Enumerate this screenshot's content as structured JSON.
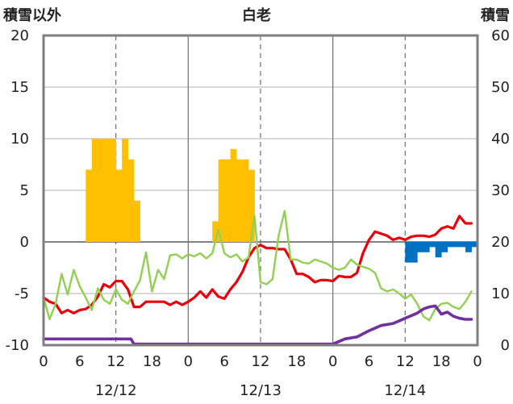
{
  "chart_data": {
    "type": "line",
    "title": "白老",
    "ylabel_left": "積雪以外",
    "ylabel_right": "積雪",
    "ylim_left": [
      -10,
      20
    ],
    "ylim_right": [
      0,
      60
    ],
    "yticks_left": [
      "20",
      "15",
      "10",
      "5",
      "0",
      "-5",
      "-10"
    ],
    "yticks_right": [
      "60",
      "50",
      "40",
      "30",
      "20",
      "10",
      "0"
    ],
    "xlim_hours": [
      0,
      72
    ],
    "xtick_labels": [
      "0",
      "6",
      "12",
      "18",
      "0",
      "6",
      "12",
      "18",
      "0",
      "6",
      "12",
      "18",
      "0"
    ],
    "date_labels": [
      "12/12",
      "12/13",
      "12/14"
    ],
    "grid": true,
    "colors": {
      "temperature": "#e8000b",
      "temperature2": "#92d050",
      "precipitation": "#ffc000",
      "snowfall_deficit": "#0070c0",
      "snow_depth": "#7030a0",
      "frame": "#7f7f7f"
    },
    "series": [
      {
        "key": "red",
        "axis": "left",
        "x": [
          0,
          1,
          2,
          3,
          4,
          5,
          6,
          7,
          8,
          9,
          10,
          11,
          12,
          13,
          14,
          15,
          16,
          17,
          18,
          19,
          20,
          21,
          22,
          23,
          24,
          25,
          26,
          27,
          28,
          29,
          30,
          31,
          32,
          33,
          34,
          35,
          36,
          37,
          38,
          39,
          40,
          41,
          42,
          43,
          44,
          45,
          46,
          47,
          48,
          49,
          50,
          51,
          52,
          53,
          54,
          55,
          56,
          57,
          58,
          59,
          60,
          61,
          62,
          63,
          64,
          65,
          66,
          67,
          68,
          69,
          70,
          71
        ],
        "values": [
          -5.4,
          -5.8,
          -6.0,
          -6.9,
          -6.6,
          -6.9,
          -6.6,
          -6.5,
          -6.1,
          -5.3,
          -4.1,
          -4.4,
          -3.8,
          -3.8,
          -4.6,
          -6.3,
          -6.3,
          -5.8,
          -5.8,
          -5.8,
          -5.8,
          -6.1,
          -5.8,
          -6.1,
          -5.8,
          -5.4,
          -4.8,
          -5.4,
          -4.6,
          -5.3,
          -5.5,
          -4.6,
          -3.9,
          -2.9,
          -1.5,
          -0.6,
          -0.3,
          -0.6,
          -0.6,
          -0.7,
          -0.7,
          -1.7,
          -3.1,
          -3.1,
          -3.4,
          -3.9,
          -3.7,
          -3.7,
          -3.8,
          -3.3,
          -3.4,
          -3.4,
          -3.0,
          -1.1,
          0.2,
          1.0,
          0.8,
          0.6,
          0.2,
          0.4,
          0.2,
          0.5,
          0.6,
          0.6,
          0.5,
          0.7,
          1.3,
          1.5,
          1.3,
          2.5,
          1.8,
          1.8
        ]
      },
      {
        "key": "green",
        "axis": "left",
        "x": [
          0,
          1,
          2,
          3,
          4,
          5,
          6,
          7,
          8,
          9,
          10,
          11,
          12,
          13,
          14,
          15,
          16,
          17,
          18,
          19,
          20,
          21,
          22,
          23,
          24,
          25,
          26,
          27,
          28,
          29,
          30,
          31,
          32,
          33,
          34,
          35,
          36,
          37,
          38,
          39,
          40,
          41,
          42,
          43,
          44,
          45,
          46,
          47,
          48,
          49,
          50,
          51,
          52,
          53,
          54,
          55,
          56,
          57,
          58,
          59,
          60,
          61,
          62,
          63,
          64,
          65,
          66,
          67,
          68,
          69,
          70,
          71
        ],
        "values": [
          -5.4,
          -7.5,
          -6.0,
          -3.1,
          -5.1,
          -2.7,
          -4.3,
          -5.4,
          -6.6,
          -4.5,
          -5.6,
          -6.0,
          -4.6,
          -5.6,
          -6.0,
          -4.8,
          -3.7,
          -1.0,
          -4.8,
          -2.7,
          -3.6,
          -1.3,
          -1.2,
          -1.6,
          -1.2,
          -1.4,
          -1.1,
          -1.6,
          -1.1,
          1.2,
          -1.1,
          -1.5,
          -1.2,
          -1.9,
          -1.5,
          2.5,
          -3.9,
          -4.1,
          -3.6,
          0.6,
          3.0,
          -1.7,
          -1.7,
          -2.0,
          -2.1,
          -1.7,
          -1.9,
          -2.1,
          -2.5,
          -2.7,
          -2.5,
          -1.7,
          -2.2,
          -2.4,
          -2.6,
          -3.0,
          -4.5,
          -4.8,
          -4.6,
          -5.0,
          -5.5,
          -5.1,
          -6.0,
          -7.2,
          -7.6,
          -6.5,
          -6.0,
          -5.9,
          -6.3,
          -6.5,
          -5.8,
          -4.8
        ]
      },
      {
        "key": "purple",
        "axis": "left",
        "x": [
          0,
          14,
          14.5,
          15,
          47,
          48,
          50,
          52,
          54,
          56,
          58,
          60,
          62,
          63,
          64,
          65,
          66,
          67,
          68,
          69,
          70,
          71
        ],
        "values": [
          -9.4,
          -9.4,
          -9.4,
          -9.9,
          -9.9,
          -9.9,
          -9.4,
          -9.2,
          -8.6,
          -8.1,
          -7.9,
          -7.4,
          -6.9,
          -6.5,
          -6.3,
          -6.2,
          -7.0,
          -6.8,
          -7.2,
          -7.4,
          -7.5,
          -7.5
        ]
      }
    ],
    "bars": [
      {
        "key": "orange",
        "axis": "left",
        "x": [
          7,
          8,
          9,
          10,
          11,
          12,
          13,
          14,
          15,
          28,
          29,
          30,
          31,
          32,
          33,
          34
        ],
        "values": [
          7,
          10,
          10,
          10,
          10,
          7,
          10,
          8,
          4,
          2,
          8,
          8,
          9,
          8,
          8,
          7
        ]
      },
      {
        "key": "blue",
        "axis": "left",
        "x": [
          60,
          61,
          62,
          63,
          64,
          65,
          66,
          67,
          68,
          69,
          70,
          71
        ],
        "values": [
          -2,
          -2,
          -1,
          -1,
          -0.5,
          -1.5,
          -1,
          -0.5,
          -0.5,
          -0.5,
          -1,
          -0.5
        ]
      }
    ]
  }
}
